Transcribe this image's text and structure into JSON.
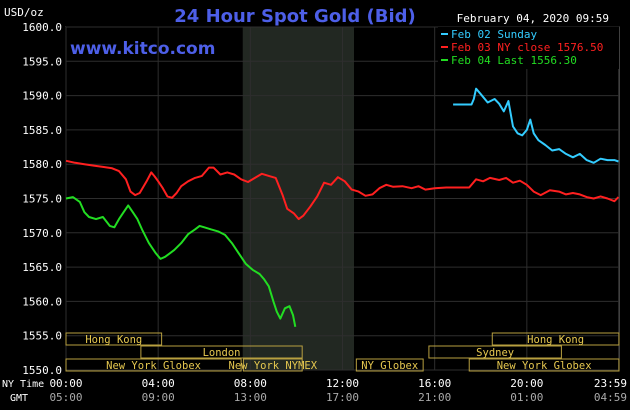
{
  "chart_data": {
    "type": "line",
    "title": "24 Hour Spot Gold (Bid)",
    "site": "www.kitco.com",
    "ylabel": "USD/oz",
    "datetime": "February 04, 2020 09:59",
    "ylim": [
      1550,
      1600
    ],
    "y_ticks": [
      "1600.0",
      "1595.0",
      "1590.0",
      "1585.0",
      "1580.0",
      "1575.0",
      "1570.0",
      "1565.0",
      "1560.0",
      "1555.0",
      "1550.0"
    ],
    "xlim": [
      0,
      24
    ],
    "x_ticks": [
      {
        "ny": "00:00",
        "gmt": "05:00"
      },
      {
        "ny": "04:00",
        "gmt": "09:00"
      },
      {
        "ny": "08:00",
        "gmt": "13:00"
      },
      {
        "ny": "12:00",
        "gmt": "17:00"
      },
      {
        "ny": "16:00",
        "gmt": "21:00"
      },
      {
        "ny": "20:00",
        "gmt": "01:00"
      },
      {
        "ny": "23:59",
        "gmt": "04:59"
      }
    ],
    "row_labels": {
      "ny": "NY Time",
      "gmt": "GMT"
    },
    "shaded_session": [
      7.67,
      12.5
    ],
    "sessions": [
      {
        "label": "Hong Kong",
        "start": 0,
        "end": 4.15,
        "row": 0
      },
      {
        "label": "Hong Kong",
        "start": 18.5,
        "end": 24,
        "row": 0
      },
      {
        "label": "London",
        "start": 3.25,
        "end": 10.25,
        "row": 1
      },
      {
        "label": "Sydney",
        "start": 15.75,
        "end": 21.5,
        "row": 1
      },
      {
        "label": "New York Globex",
        "start": 0,
        "end": 7.6,
        "row": 2
      },
      {
        "label": "New York NYMEX",
        "start": 7.7,
        "end": 10.25,
        "row": 2
      },
      {
        "label": "NY Globex",
        "start": 12.6,
        "end": 15.5,
        "row": 2
      },
      {
        "label": "New York Globex",
        "start": 17.5,
        "end": 24,
        "row": 2
      }
    ],
    "series": [
      {
        "name": "Feb 02 Sunday",
        "color": "#33ccff",
        "points": [
          [
            16.8,
            1588.7
          ],
          [
            17.6,
            1588.7
          ],
          [
            17.7,
            1589.5
          ],
          [
            17.8,
            1591.0
          ],
          [
            18.0,
            1590.2
          ],
          [
            18.3,
            1589.0
          ],
          [
            18.6,
            1589.5
          ],
          [
            18.8,
            1588.8
          ],
          [
            19.0,
            1587.7
          ],
          [
            19.2,
            1589.2
          ],
          [
            19.4,
            1585.5
          ],
          [
            19.6,
            1584.5
          ],
          [
            19.8,
            1584.2
          ],
          [
            20.0,
            1585.0
          ],
          [
            20.15,
            1586.5
          ],
          [
            20.3,
            1584.5
          ],
          [
            20.5,
            1583.5
          ],
          [
            20.8,
            1582.8
          ],
          [
            21.1,
            1582.0
          ],
          [
            21.4,
            1582.2
          ],
          [
            21.7,
            1581.5
          ],
          [
            22.0,
            1581.0
          ],
          [
            22.3,
            1581.5
          ],
          [
            22.6,
            1580.6
          ],
          [
            22.9,
            1580.2
          ],
          [
            23.2,
            1580.8
          ],
          [
            23.5,
            1580.6
          ],
          [
            23.8,
            1580.6
          ],
          [
            23.98,
            1580.4
          ]
        ]
      },
      {
        "name": "Feb 03 NY close 1576.50",
        "color": "#ff2020",
        "points": [
          [
            0,
            1580.5
          ],
          [
            0.4,
            1580.2
          ],
          [
            0.8,
            1580.0
          ],
          [
            1.2,
            1579.8
          ],
          [
            1.6,
            1579.6
          ],
          [
            2.0,
            1579.4
          ],
          [
            2.3,
            1579.0
          ],
          [
            2.6,
            1577.8
          ],
          [
            2.8,
            1576.0
          ],
          [
            3.0,
            1575.5
          ],
          [
            3.2,
            1575.8
          ],
          [
            3.5,
            1577.5
          ],
          [
            3.7,
            1578.8
          ],
          [
            3.85,
            1578.2
          ],
          [
            4.0,
            1577.5
          ],
          [
            4.2,
            1576.5
          ],
          [
            4.4,
            1575.3
          ],
          [
            4.6,
            1575.1
          ],
          [
            4.8,
            1575.8
          ],
          [
            5.0,
            1576.8
          ],
          [
            5.3,
            1577.5
          ],
          [
            5.6,
            1578.0
          ],
          [
            5.9,
            1578.3
          ],
          [
            6.2,
            1579.5
          ],
          [
            6.4,
            1579.5
          ],
          [
            6.7,
            1578.5
          ],
          [
            7.0,
            1578.8
          ],
          [
            7.3,
            1578.5
          ],
          [
            7.6,
            1577.8
          ],
          [
            7.9,
            1577.4
          ],
          [
            8.2,
            1578.0
          ],
          [
            8.5,
            1578.6
          ],
          [
            8.8,
            1578.3
          ],
          [
            9.1,
            1578.0
          ],
          [
            9.4,
            1575.5
          ],
          [
            9.6,
            1573.5
          ],
          [
            9.9,
            1572.8
          ],
          [
            10.1,
            1572.0
          ],
          [
            10.3,
            1572.5
          ],
          [
            10.6,
            1573.8
          ],
          [
            10.9,
            1575.3
          ],
          [
            11.2,
            1577.3
          ],
          [
            11.5,
            1577.0
          ],
          [
            11.8,
            1578.1
          ],
          [
            12.1,
            1577.5
          ],
          [
            12.4,
            1576.3
          ],
          [
            12.7,
            1576.0
          ],
          [
            13.0,
            1575.4
          ],
          [
            13.3,
            1575.6
          ],
          [
            13.6,
            1576.5
          ],
          [
            13.9,
            1577.0
          ],
          [
            14.2,
            1576.7
          ],
          [
            14.6,
            1576.8
          ],
          [
            15.0,
            1576.5
          ],
          [
            15.3,
            1576.8
          ],
          [
            15.6,
            1576.3
          ],
          [
            16.0,
            1576.5
          ],
          [
            16.5,
            1576.6
          ],
          [
            17.0,
            1576.6
          ],
          [
            17.5,
            1576.6
          ],
          [
            17.8,
            1577.8
          ],
          [
            18.1,
            1577.5
          ],
          [
            18.4,
            1578.0
          ],
          [
            18.8,
            1577.7
          ],
          [
            19.1,
            1578.0
          ],
          [
            19.4,
            1577.3
          ],
          [
            19.7,
            1577.6
          ],
          [
            20.0,
            1577.0
          ],
          [
            20.3,
            1576.0
          ],
          [
            20.6,
            1575.5
          ],
          [
            21.0,
            1576.2
          ],
          [
            21.4,
            1576.0
          ],
          [
            21.7,
            1575.6
          ],
          [
            22.0,
            1575.8
          ],
          [
            22.3,
            1575.6
          ],
          [
            22.6,
            1575.2
          ],
          [
            22.9,
            1575.0
          ],
          [
            23.2,
            1575.3
          ],
          [
            23.5,
            1575.0
          ],
          [
            23.8,
            1574.6
          ],
          [
            23.98,
            1575.2
          ]
        ]
      },
      {
        "name": "Feb 04 Last 1556.30",
        "color": "#22dd22",
        "points": [
          [
            0,
            1575.0
          ],
          [
            0.3,
            1575.2
          ],
          [
            0.6,
            1574.5
          ],
          [
            0.8,
            1573.0
          ],
          [
            1.0,
            1572.3
          ],
          [
            1.3,
            1572.0
          ],
          [
            1.6,
            1572.3
          ],
          [
            1.9,
            1571.0
          ],
          [
            2.1,
            1570.8
          ],
          [
            2.3,
            1572.0
          ],
          [
            2.5,
            1573.0
          ],
          [
            2.7,
            1574.0
          ],
          [
            2.9,
            1573.0
          ],
          [
            3.1,
            1572.0
          ],
          [
            3.3,
            1570.5
          ],
          [
            3.6,
            1568.5
          ],
          [
            3.9,
            1567.0
          ],
          [
            4.1,
            1566.2
          ],
          [
            4.3,
            1566.5
          ],
          [
            4.5,
            1567.0
          ],
          [
            4.7,
            1567.5
          ],
          [
            5.0,
            1568.5
          ],
          [
            5.3,
            1569.8
          ],
          [
            5.6,
            1570.5
          ],
          [
            5.8,
            1571.0
          ],
          [
            6.0,
            1570.8
          ],
          [
            6.3,
            1570.5
          ],
          [
            6.6,
            1570.2
          ],
          [
            6.9,
            1569.7
          ],
          [
            7.2,
            1568.5
          ],
          [
            7.5,
            1567.0
          ],
          [
            7.8,
            1565.5
          ],
          [
            8.1,
            1564.6
          ],
          [
            8.4,
            1564.0
          ],
          [
            8.6,
            1563.2
          ],
          [
            8.8,
            1562.2
          ],
          [
            9.0,
            1560.0
          ],
          [
            9.15,
            1558.5
          ],
          [
            9.3,
            1557.5
          ],
          [
            9.5,
            1559.0
          ],
          [
            9.7,
            1559.3
          ],
          [
            9.85,
            1558.0
          ],
          [
            9.95,
            1556.3
          ]
        ]
      }
    ]
  }
}
